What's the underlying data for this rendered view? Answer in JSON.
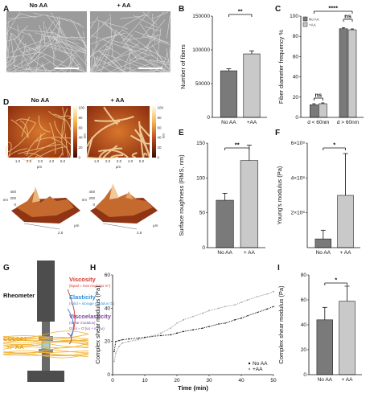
{
  "panels": {
    "A": {
      "label": "A",
      "left_title": "No AA",
      "right_title": "+  AA"
    },
    "D": {
      "label": "D",
      "left_title": "No AA",
      "right_title": "+  AA",
      "x_ticks": [
        "1.0",
        "2.0",
        "3.0",
        "4.0",
        "5.0"
      ],
      "x_unit": "μm",
      "cb_ticks": [
        "100",
        "80",
        "60",
        "40",
        "20",
        "0"
      ],
      "cb_unit": "nm",
      "z_ticks": [
        "400",
        "200",
        "0"
      ],
      "z_unit": "nm",
      "axis_tick": "2.5",
      "axis_unit": "μm"
    },
    "G": {
      "label": "G",
      "rheometer": "Rheometer",
      "viscosity_title": "Viscosity",
      "viscosity_desc": "(liquid ≈ loss modulus G”)",
      "elasticity_title": "Elasticity",
      "elasticity_desc": "(solid ≈ storage modulus G’)",
      "viscoelasticity_title": "Viscoelasticity",
      "viscoelasticity_desc": "(shear modulus)",
      "formula": "G(ω) = G’(ω) + iG”(ω)",
      "sample": "COL1A1",
      "sample2": "+/- AA"
    }
  },
  "colors": {
    "dark_bar": "#7a7a7a",
    "light_bar": "#c9c9c9",
    "viscosity": "#d2342c",
    "elasticity": "#2f8fd8",
    "viscoelasticity": "#7e4a99",
    "fiber": "#f2b233"
  },
  "chart_data": [
    {
      "panel": "B",
      "type": "bar",
      "categories": [
        "No AA",
        "+AA"
      ],
      "values": [
        69000,
        94000
      ],
      "errors": [
        3000,
        4500
      ],
      "ylabel": "Number of fibers",
      "ylim": [
        0,
        150000
      ],
      "yticks": [
        "0",
        "50000",
        "100000",
        "150000"
      ],
      "significance": "**"
    },
    {
      "panel": "C",
      "type": "bar",
      "categories": [
        "d < 60nm",
        "d > 60nm"
      ],
      "series": [
        {
          "name": "No AA",
          "values": [
            12.5,
            87.5
          ],
          "errors": [
            1.0,
            1.0
          ]
        },
        {
          "name": "+AA",
          "values": [
            13.5,
            86.5
          ],
          "errors": [
            0.8,
            0.8
          ]
        }
      ],
      "ylabel": "Fiber diameter frequency %",
      "ylim": [
        0,
        100
      ],
      "yticks": [
        "0",
        "20",
        "40",
        "60",
        "80",
        "100"
      ],
      "significance": [
        "ns",
        "ns",
        "****"
      ],
      "legend_position": "top-left"
    },
    {
      "panel": "E",
      "type": "bar",
      "categories": [
        "No AA",
        "+ AA"
      ],
      "values": [
        68,
        125
      ],
      "errors": [
        10,
        22
      ],
      "ylabel": "Surface roughness (RMS, nm)",
      "ylim": [
        0,
        150
      ],
      "yticks": [
        "0",
        "50",
        "100",
        "150"
      ],
      "significance": "**"
    },
    {
      "panel": "F",
      "type": "bar",
      "categories": [
        "No AA",
        "+ AA"
      ],
      "values": [
        0.5,
        3.0
      ],
      "errors": [
        0.5,
        2.4
      ],
      "ylabel": "Young's modulus (Pa)",
      "ylim": [
        0,
        6
      ],
      "ytick_values": [
        2,
        4,
        6
      ],
      "yticks": [
        "2×10⁸",
        "4×10⁸",
        "6×10⁸"
      ],
      "significance": "*"
    },
    {
      "panel": "H",
      "type": "scatter",
      "xlabel": "Time (min)",
      "ylabel": "Complex shear modulus (Pa)",
      "xlim": [
        0,
        50
      ],
      "ylim": [
        0,
        60
      ],
      "xticks": [
        "0",
        "10",
        "20",
        "30",
        "40",
        "50"
      ],
      "yticks": [
        "0",
        "20",
        "40",
        "60"
      ],
      "series": [
        {
          "name": "No AA",
          "x": [
            0.5,
            1,
            2,
            3,
            5,
            8,
            10,
            12,
            15,
            18,
            20,
            22,
            25,
            28,
            30,
            33,
            35,
            38,
            40,
            42,
            45,
            48,
            50
          ],
          "y": [
            14,
            20,
            20.5,
            21,
            21.5,
            22,
            22.5,
            23,
            23.5,
            24,
            25,
            26,
            27,
            28,
            29,
            30.5,
            31,
            33,
            34,
            35.5,
            37.5,
            39.5,
            41
          ]
        },
        {
          "name": "+AA",
          "x": [
            0.5,
            1,
            2,
            3,
            5,
            8,
            10,
            12,
            15,
            18,
            20,
            22,
            25,
            28,
            30,
            33,
            35,
            38,
            40,
            42,
            45,
            48,
            50
          ],
          "y": [
            8,
            13,
            17,
            19,
            20,
            21,
            22,
            23,
            25,
            28,
            31,
            33,
            35,
            37,
            38.5,
            40,
            41,
            42,
            43.5,
            45,
            47,
            48.5,
            50
          ]
        }
      ],
      "legend_position": "bottom-right"
    },
    {
      "panel": "I",
      "type": "bar",
      "categories": [
        "No AA",
        "+ AA"
      ],
      "values": [
        44,
        59
      ],
      "errors": [
        10,
        12
      ],
      "ylabel": "Complex shear modulus (Pa)",
      "ylim": [
        0,
        80
      ],
      "yticks": [
        "0",
        "20",
        "40",
        "60",
        "80"
      ],
      "significance": "*"
    }
  ]
}
